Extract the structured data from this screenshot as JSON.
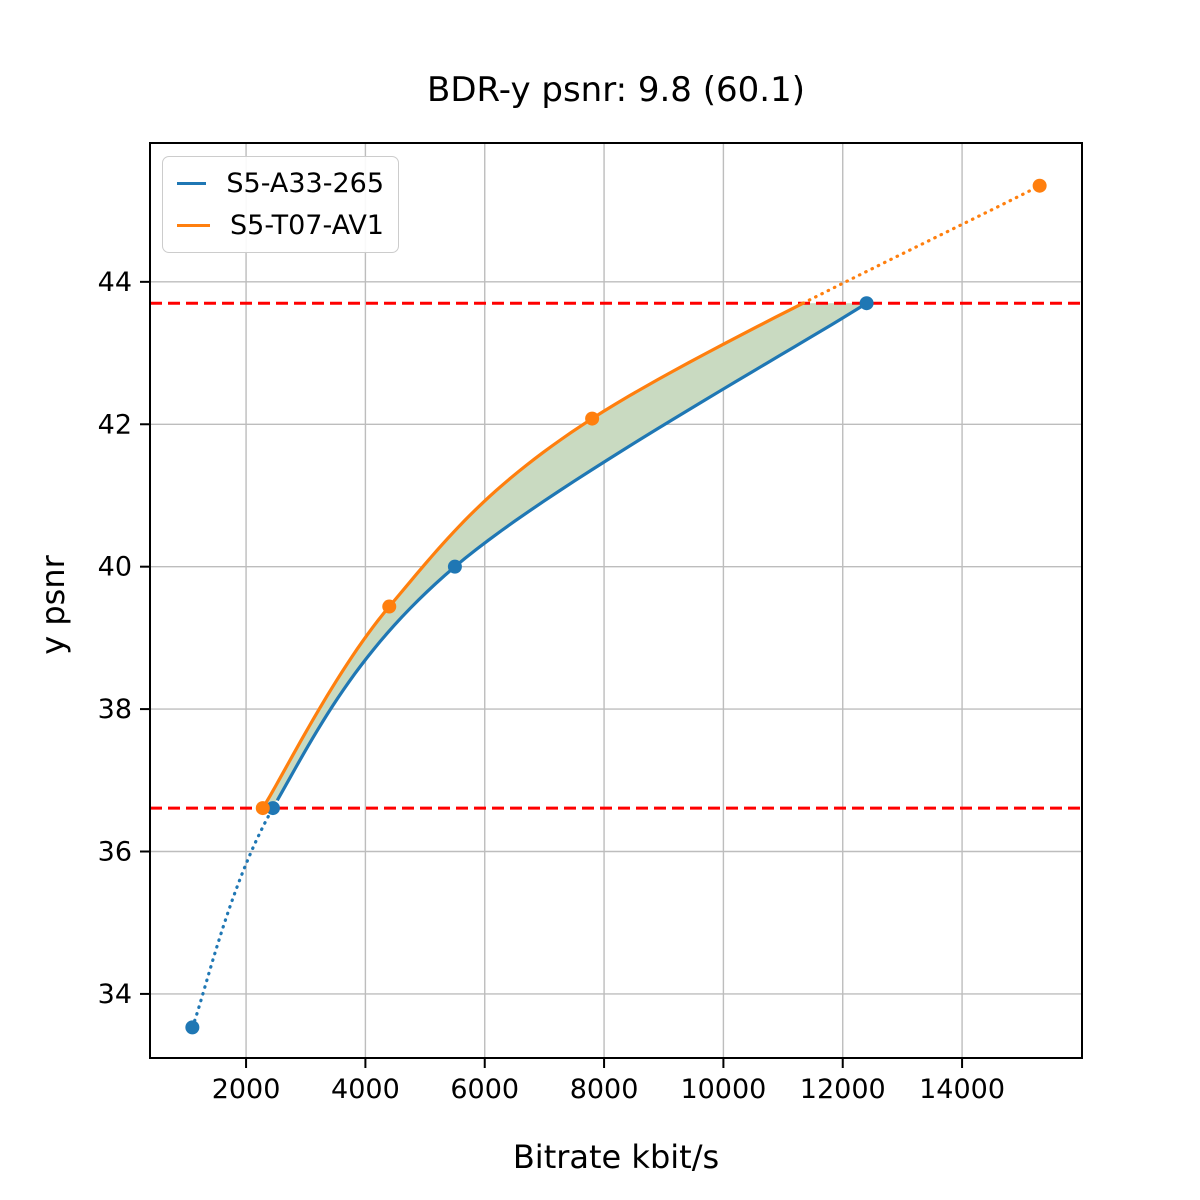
{
  "chart_data": {
    "type": "line",
    "title": "BDR-y psnr: 9.8 (60.1)",
    "xlabel": "Bitrate kbit/s",
    "ylabel": "y psnr",
    "bd_rate": "9.8",
    "bd_rate_secondary": "60.1",
    "xlim": [
      390,
      16010
    ],
    "ylim": [
      33.1,
      45.95
    ],
    "xticks": [
      2000,
      4000,
      6000,
      8000,
      10000,
      12000,
      14000
    ],
    "yticks": [
      34,
      36,
      38,
      40,
      42,
      44
    ],
    "grid": true,
    "grid_color": "#bdbdbd",
    "legend_position": "upper-left",
    "series": [
      {
        "name": "S5-A33-265",
        "color": "#1f77b4",
        "points": [
          [
            1100,
            33.53
          ],
          [
            2450,
            36.61
          ],
          [
            5500,
            40.0
          ],
          [
            12400,
            43.7
          ]
        ],
        "dotted_segment": "below-first-solid-point",
        "solid_from_index": 1
      },
      {
        "name": "S5-T07-AV1",
        "color": "#ff7f0e",
        "points": [
          [
            2280,
            36.61
          ],
          [
            4400,
            39.44
          ],
          [
            7800,
            42.08
          ],
          [
            15300,
            45.35
          ]
        ],
        "dotted_segment": "above-upper-hline",
        "solid_until_y": 43.7
      }
    ],
    "hlines": [
      {
        "name": "upper-quality-bound",
        "y": 43.7,
        "color": "#ff0000",
        "style": "dashed"
      },
      {
        "name": "lower-quality-bound",
        "y": 36.61,
        "color": "#ff0000",
        "style": "dashed"
      }
    ],
    "fill_between": {
      "color": "#c9dac1",
      "lower_y": 36.61,
      "upper_y": 43.7
    }
  }
}
